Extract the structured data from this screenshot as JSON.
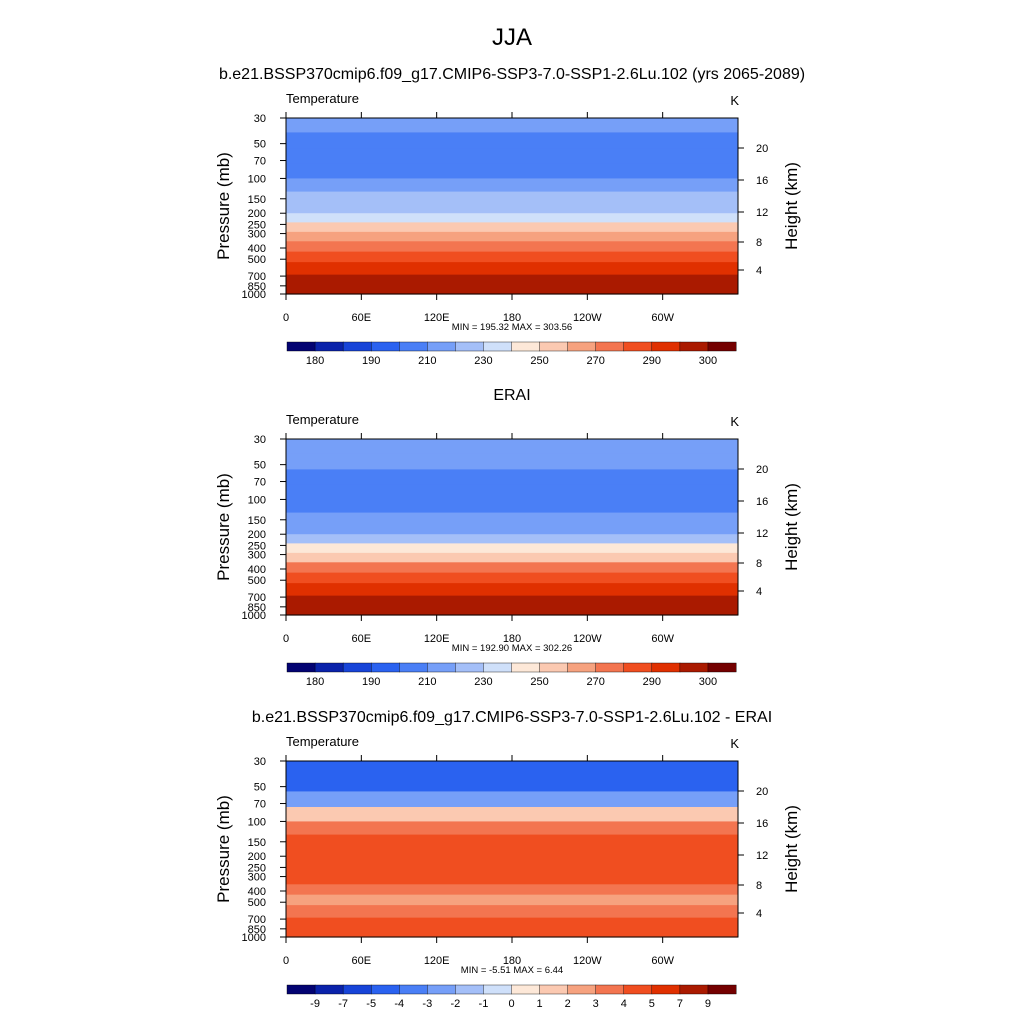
{
  "figure": {
    "main_title": "JJA"
  },
  "chart_data": [
    {
      "type": "heatmap",
      "panel_title": "b.e21.BSSP370cmip6.f09_g17.CMIP6-SSP3-7.0-SSP1-2.6Lu.102 (yrs 2065-2089)",
      "variable_label": "Temperature",
      "units_label": "K",
      "ylabel": "Pressure (mb)",
      "ylabel_right": "Height (km)",
      "x_ticks": [
        "0",
        "60E",
        "120E",
        "180",
        "120W",
        "60W"
      ],
      "y_ticks": [
        "30",
        "50",
        "70",
        "100",
        "150",
        "200",
        "250",
        "300",
        "400",
        "500",
        "700",
        "850",
        "1000"
      ],
      "y2_ticks": [
        "20",
        "16",
        "12",
        "8",
        "4"
      ],
      "stats_text": "MIN = 195.32  MAX = 303.56",
      "min": 195.32,
      "max": 303.56,
      "colorbar_labels": [
        "180",
        "190",
        "210",
        "230",
        "250",
        "270",
        "290",
        "300"
      ],
      "colorbar_colors": [
        "#030372",
        "#0a22aa",
        "#1744d8",
        "#2a62f0",
        "#4a7ff6",
        "#769ff8",
        "#a4bff8",
        "#cfe0fa",
        "#fde8d8",
        "#fbc9b1",
        "#f6a27f",
        "#f37550",
        "#f04e20",
        "#e03000",
        "#aa1a00",
        "#740000"
      ],
      "x_values_deg": [
        0,
        60,
        120,
        180,
        240,
        300,
        360
      ],
      "band_temperatures_K": [
        217,
        204,
        200,
        205,
        215,
        222,
        228,
        236,
        250,
        262,
        277,
        285,
        293,
        297
      ]
    },
    {
      "type": "heatmap",
      "panel_title": "ERAI",
      "variable_label": "Temperature",
      "units_label": "K",
      "ylabel": "Pressure (mb)",
      "ylabel_right": "Height (km)",
      "x_ticks": [
        "0",
        "60E",
        "120E",
        "180",
        "120W",
        "60W"
      ],
      "y_ticks": [
        "30",
        "50",
        "70",
        "100",
        "150",
        "200",
        "250",
        "300",
        "400",
        "500",
        "700",
        "850",
        "1000"
      ],
      "y2_ticks": [
        "20",
        "16",
        "12",
        "8",
        "4"
      ],
      "stats_text": "MIN = 192.90  MAX = 302.26",
      "min": 192.9,
      "max": 302.26,
      "colorbar_labels": [
        "180",
        "190",
        "210",
        "230",
        "250",
        "270",
        "290",
        "300"
      ],
      "colorbar_colors": [
        "#030372",
        "#0a22aa",
        "#1744d8",
        "#2a62f0",
        "#4a7ff6",
        "#769ff8",
        "#a4bff8",
        "#cfe0fa",
        "#fde8d8",
        "#fbc9b1",
        "#f6a27f",
        "#f37550",
        "#f04e20",
        "#e03000",
        "#aa1a00",
        "#740000"
      ],
      "x_values_deg": [
        0,
        60,
        120,
        180,
        240,
        300,
        360
      ],
      "band_temperatures_K": [
        218,
        210,
        203,
        200,
        205,
        212,
        218,
        226,
        240,
        256,
        272,
        283,
        292,
        297
      ]
    },
    {
      "type": "heatmap",
      "panel_title": "b.e21.BSSP370cmip6.f09_g17.CMIP6-SSP3-7.0-SSP1-2.6Lu.102 - ERAI",
      "variable_label": "Temperature",
      "units_label": "K",
      "ylabel": "Pressure (mb)",
      "ylabel_right": "Height (km)",
      "x_ticks": [
        "0",
        "60E",
        "120E",
        "180",
        "120W",
        "60W"
      ],
      "y_ticks": [
        "30",
        "50",
        "70",
        "100",
        "150",
        "200",
        "250",
        "300",
        "400",
        "500",
        "700",
        "850",
        "1000"
      ],
      "y2_ticks": [
        "20",
        "16",
        "12",
        "8",
        "4"
      ],
      "stats_text": "MIN =  -5.51  MAX =   6.44",
      "min": -5.51,
      "max": 6.44,
      "colorbar_labels": [
        "-9",
        "-7",
        "-5",
        "-4",
        "-3",
        "-2",
        "-1",
        "0",
        "1",
        "2",
        "3",
        "4",
        "5",
        "7",
        "9"
      ],
      "colorbar_colors": [
        "#030372",
        "#0a22aa",
        "#1744d8",
        "#2a62f0",
        "#4a7ff6",
        "#769ff8",
        "#a4bff8",
        "#cfe0fa",
        "#fde8d8",
        "#fbc9b1",
        "#f6a27f",
        "#f37550",
        "#f04e20",
        "#e03000",
        "#aa1a00",
        "#740000"
      ],
      "x_values_deg": [
        0,
        60,
        120,
        180,
        240,
        300,
        360
      ],
      "band_differences_K": [
        -4.5,
        -4.4,
        -2.5,
        1.5,
        3.5,
        4.5,
        4.5,
        4.5,
        4.5,
        4.5,
        3.5,
        2.5,
        3.5,
        4.5
      ]
    }
  ]
}
